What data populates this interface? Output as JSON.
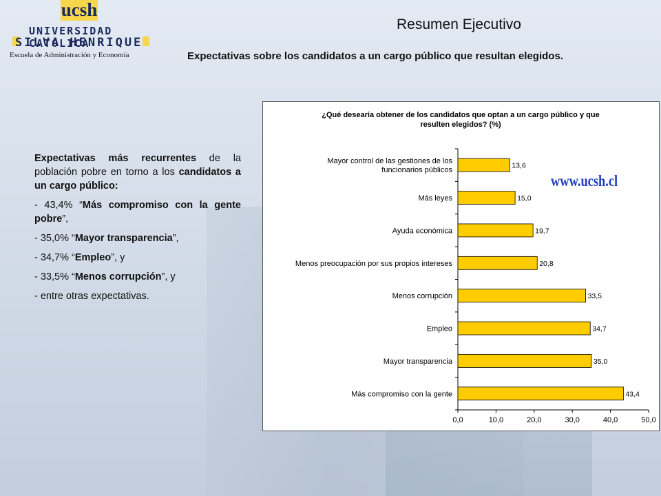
{
  "header": {
    "title": "Resumen Ejecutivo",
    "subtitle": "Expectativas sobre los candidatos a un cargo público que resultan elegidos."
  },
  "logo": {
    "mark": "ucsh",
    "line1": "UNIVERSIDAD CATOLICA",
    "line2": "SILVA HENRIQUEZ",
    "school": "Escuela de Administración y Economía"
  },
  "summary": {
    "intro_bold1": "Expectativas más recurrentes",
    "intro_text1": " de la población pobre en torno a los ",
    "intro_bold2": "candidatos a un cargo público:",
    "items": [
      {
        "prefix": "- 43,4% “",
        "bold": "Más compromiso con la gente pobre",
        "suffix": "”,"
      },
      {
        "prefix": "- 35,0% “",
        "bold": "Mayor transparencia",
        "suffix": "”,"
      },
      {
        "prefix": "- 34,7% “",
        "bold": "Empleo",
        "suffix": "”, y"
      },
      {
        "prefix": "- 33,5% “",
        "bold": "Menos corrupción",
        "suffix": "”, y"
      },
      {
        "prefix": "- entre otras expectativas.",
        "bold": "",
        "suffix": ""
      }
    ]
  },
  "watermark": "www.ucsh.cl",
  "colors": {
    "bar": "#ffcc00",
    "bar_border": "#000000",
    "accent": "#1f3fbf"
  },
  "chart_data": {
    "type": "bar",
    "orientation": "horizontal",
    "title_line1": "¿Qué desearía obtener de los candidatos que optan a un cargo público y que",
    "title_line2": "resulten elegidos? (%)",
    "categories": [
      [
        "Mayor control de las gestiones de los",
        "funcionarios públicos"
      ],
      [
        "Más leyes"
      ],
      [
        "Ayuda económica"
      ],
      [
        "Menos preocupación por sus propios intereses"
      ],
      [
        "Menos corrupción"
      ],
      [
        "Empleo"
      ],
      [
        "Mayor transparencia"
      ],
      [
        "Más compromiso con la gente"
      ]
    ],
    "values": [
      13.6,
      15.0,
      19.7,
      20.8,
      33.5,
      34.7,
      35.0,
      43.4
    ],
    "value_labels": [
      "13,6",
      "15,0",
      "19,7",
      "20,8",
      "33,5",
      "34,7",
      "35,0",
      "43,4"
    ],
    "x_ticks": [
      "0,0",
      "10,0",
      "20,0",
      "30,0",
      "40,0",
      "50,0"
    ],
    "xlim": [
      0,
      50
    ],
    "grid": false,
    "legend": "none"
  }
}
